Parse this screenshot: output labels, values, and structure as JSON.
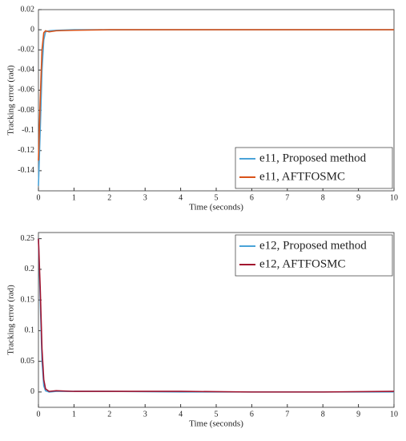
{
  "chart_data": [
    {
      "type": "line",
      "xlabel": "Time (seconds)",
      "ylabel": "Tracking error (rad)",
      "x": [
        0,
        0.05,
        0.1,
        0.15,
        0.2,
        0.3,
        0.5,
        1,
        2,
        4,
        6,
        8,
        10
      ],
      "series": [
        {
          "name": "e11, Proposed method",
          "color": "#4aa3d8",
          "values": [
            -0.155,
            -0.1,
            -0.04,
            -0.01,
            -0.002,
            -0.001,
            -0.0005,
            0,
            0,
            0,
            0,
            0,
            0
          ]
        },
        {
          "name": "e11, AFTFOSMC",
          "color": "#d95319",
          "values": [
            -0.13,
            -0.07,
            -0.02,
            -0.003,
            -0.001,
            -0.002,
            -0.001,
            -0.0005,
            0,
            0,
            0,
            0,
            0
          ]
        }
      ],
      "xlim": [
        0,
        10
      ],
      "xticks": [
        0,
        1,
        2,
        3,
        4,
        5,
        6,
        7,
        8,
        9,
        10
      ],
      "ylim": [
        -0.16,
        0.02
      ],
      "yticks": [
        -0.14,
        -0.12,
        -0.1,
        -0.08,
        -0.06,
        -0.04,
        -0.02,
        0,
        0.02
      ],
      "legend": "lower right"
    },
    {
      "type": "line",
      "xlabel": "Time (seconds)",
      "ylabel": "Tracking error (rad)",
      "x": [
        0,
        0.05,
        0.1,
        0.15,
        0.2,
        0.3,
        0.5,
        1,
        2,
        4,
        6,
        8,
        10
      ],
      "series": [
        {
          "name": "e12, Proposed method",
          "color": "#4aa3d8",
          "values": [
            0.25,
            0.15,
            0.05,
            0.01,
            0.002,
            0,
            0.001,
            0.001,
            0.001,
            0,
            0,
            0,
            0
          ]
        },
        {
          "name": "e12, AFTFOSMC",
          "color": "#a2142f",
          "values": [
            0.25,
            0.17,
            0.07,
            0.02,
            0.005,
            0.001,
            0.002,
            0.001,
            0.001,
            0.001,
            0,
            0,
            0.001
          ]
        }
      ],
      "xlim": [
        0,
        10
      ],
      "xticks": [
        0,
        1,
        2,
        3,
        4,
        5,
        6,
        7,
        8,
        9,
        10
      ],
      "ylim": [
        -0.025,
        0.26
      ],
      "yticks": [
        0,
        0.05,
        0.1,
        0.15,
        0.2,
        0.25
      ],
      "legend": "upper right"
    }
  ]
}
